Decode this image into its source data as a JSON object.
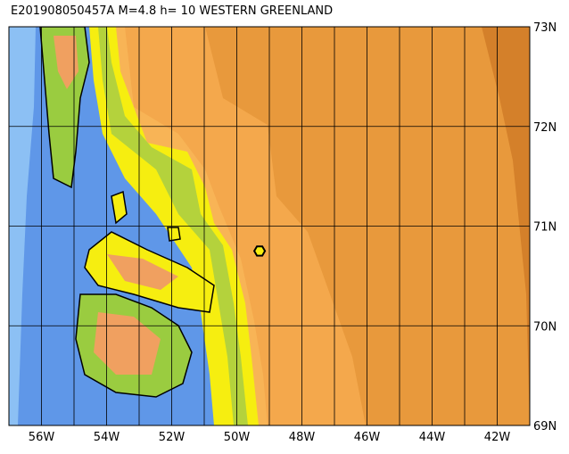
{
  "map": {
    "title": "E201908050457A M=4.8 h= 10 WESTERN GREENLAND",
    "lon_range": [
      -57,
      -41
    ],
    "lat_range": [
      69,
      73
    ],
    "lon_ticks": [
      {
        "value": -56,
        "label": "56W"
      },
      {
        "value": -54,
        "label": "54W"
      },
      {
        "value": -52,
        "label": "52W"
      },
      {
        "value": -50,
        "label": "50W"
      },
      {
        "value": -48,
        "label": "48W"
      },
      {
        "value": -46,
        "label": "46W"
      },
      {
        "value": -44,
        "label": "44W"
      },
      {
        "value": -42,
        "label": "42W"
      }
    ],
    "lon_grid": [
      -56,
      -55,
      -54,
      -53,
      -52,
      -51,
      -50,
      -49,
      -48,
      -47,
      -46,
      -45,
      -44,
      -43,
      -42
    ],
    "lat_ticks": [
      {
        "value": 73,
        "label": "73N"
      },
      {
        "value": 72,
        "label": "72N"
      },
      {
        "value": 71,
        "label": "71N"
      },
      {
        "value": 70,
        "label": "70N"
      },
      {
        "value": 69,
        "label": "69N"
      }
    ],
    "epicenter": {
      "lon": -49.3,
      "lat": 70.75
    }
  }
}
